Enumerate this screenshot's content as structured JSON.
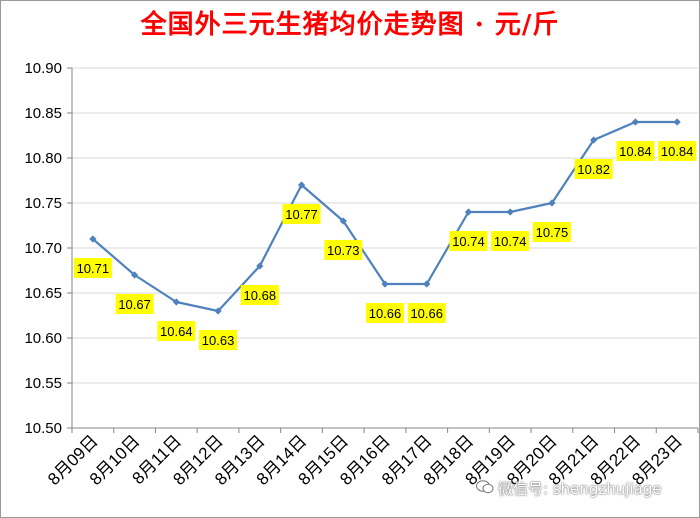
{
  "chart_data": {
    "type": "line",
    "title": "全国外三元生猪均价走势图 · 元/斤",
    "categories": [
      "8月09日",
      "8月10日",
      "8月11日",
      "8月12日",
      "8月13日",
      "8月14日",
      "8月15日",
      "8月16日",
      "8月17日",
      "8月18日",
      "8月19日",
      "8月20日",
      "8月21日",
      "8月22日",
      "8月23日"
    ],
    "values": [
      10.71,
      10.67,
      10.64,
      10.63,
      10.68,
      10.77,
      10.73,
      10.66,
      10.66,
      10.74,
      10.74,
      10.75,
      10.82,
      10.84,
      10.84
    ],
    "data_labels": [
      "10.71",
      "10.67",
      "10.64",
      "10.63",
      "10.68",
      "10.77",
      "10.73",
      "10.66",
      "10.66",
      "10.74",
      "10.74",
      "10.75",
      "10.82",
      "10.84",
      "10.84"
    ],
    "y_ticks": [
      "10.50",
      "10.55",
      "10.60",
      "10.65",
      "10.70",
      "10.75",
      "10.80",
      "10.85",
      "10.90"
    ],
    "ylim": [
      10.5,
      10.9
    ],
    "grid": true,
    "xlabel": "",
    "ylabel": "",
    "colors": {
      "line": "#4f81bd",
      "label_bg": "#ffff00",
      "title": "#ff0000",
      "grid": "#d9d9d9"
    }
  },
  "watermark": {
    "icon": "wechat-icon",
    "text": "微信号: shengzhujiage"
  }
}
